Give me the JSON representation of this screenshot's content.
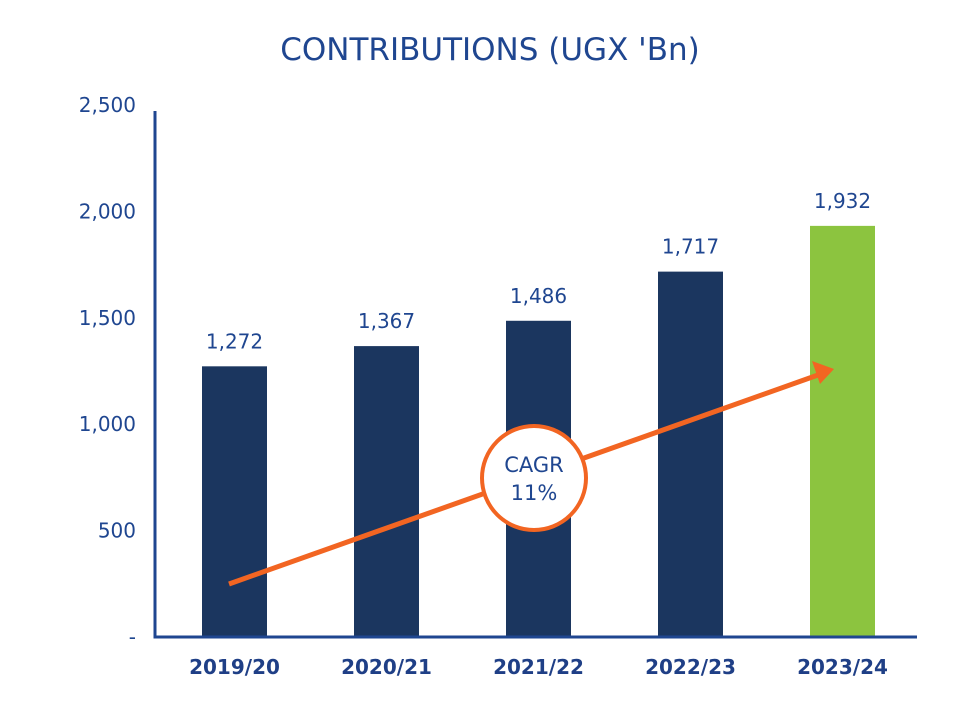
{
  "chart_data": {
    "type": "bar",
    "title": "CONTRIBUTIONS (UGX 'Bn)",
    "xlabel": "",
    "ylabel": "",
    "categories": [
      "2019/20",
      "2020/21",
      "2021/22",
      "2022/23",
      "2023/24"
    ],
    "values": [
      1272,
      1367,
      1486,
      1717,
      1932
    ],
    "value_labels": [
      "1,272",
      "1,367",
      "1,486",
      "1,717",
      "1,932"
    ],
    "ylim": [
      0,
      2500
    ],
    "yticks": [
      0,
      500,
      1000,
      1500,
      2000,
      2500
    ],
    "ytick_labels": [
      "-",
      "500",
      "1,000",
      "1,500",
      "2,000",
      "2,500"
    ],
    "grid": false,
    "legend": "none",
    "bar_colors": [
      "#1b365f",
      "#1b365f",
      "#1b365f",
      "#1b365f",
      "#8cc43f"
    ],
    "annotation": {
      "type": "trend-arrow",
      "label_line1": "CAGR",
      "label_line2": "11%",
      "cagr_percent": 11,
      "color": "#f26522"
    }
  },
  "colors": {
    "axis": "#1f4690",
    "text": "#1f4690",
    "bar": "#1b365f",
    "highlight_bar": "#8cc43f",
    "arrow": "#f26522"
  }
}
